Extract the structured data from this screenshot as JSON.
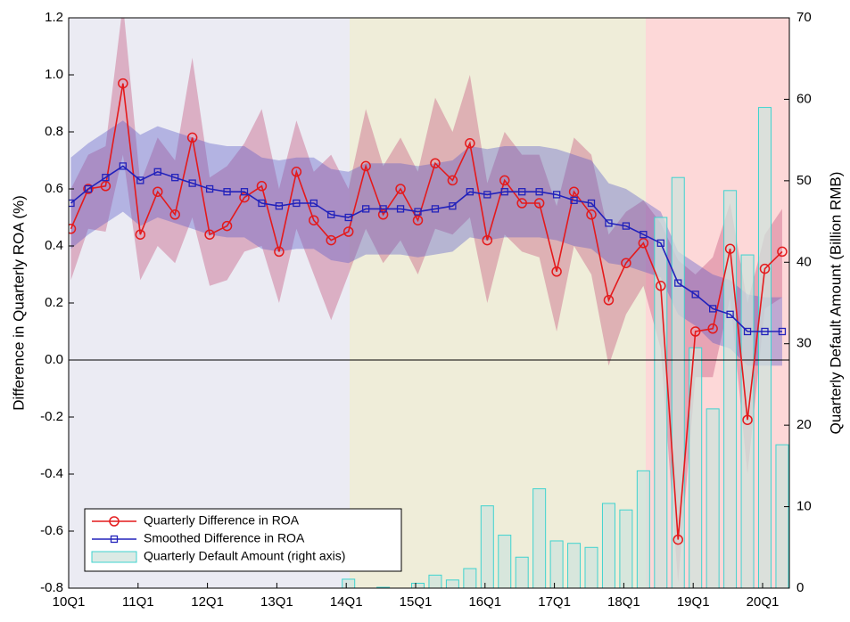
{
  "chart_data": {
    "type": "line",
    "y_label": "Difference in Quarterly ROA (%)",
    "y2_label": "Quarterly Default Amount (Billion RMB)",
    "categories": [
      "10Q1",
      null,
      null,
      null,
      "11Q1",
      null,
      null,
      null,
      "12Q1",
      null,
      null,
      null,
      "13Q1",
      null,
      null,
      null,
      "14Q1",
      null,
      null,
      null,
      "15Q1",
      null,
      null,
      null,
      "16Q1",
      null,
      null,
      null,
      "17Q1",
      null,
      null,
      null,
      "18Q1",
      null,
      null,
      null,
      "19Q1",
      null,
      null,
      null,
      "20Q1",
      null
    ],
    "ylim": [
      -0.8,
      1.2
    ],
    "yticks": [
      -0.8,
      -0.6,
      -0.4,
      -0.2,
      {
        "value": 0,
        "label": "0.0"
      },
      0.2,
      0.4,
      0.6,
      0.8,
      {
        "value": 1,
        "label": "1.0"
      },
      1.2
    ],
    "y2lim": [
      0,
      70
    ],
    "y2ticks": [
      0,
      10,
      20,
      30,
      40,
      50,
      60,
      70
    ],
    "legend": "lower left",
    "series": [
      {
        "name": "Quarterly Default Amount (right axis)",
        "type": "bar",
        "axis": "y2",
        "color": "#cfe3dc",
        "edge_color": "#3fd3cf",
        "values": [
          0,
          0,
          0,
          0,
          0,
          0,
          0,
          0,
          0,
          0,
          0,
          0,
          0,
          0,
          0,
          0,
          1.1,
          0,
          0.1,
          0,
          0.6,
          1.6,
          1.0,
          2.4,
          10.1,
          6.5,
          3.8,
          12.2,
          5.8,
          5.5,
          5.0,
          10.4,
          9.6,
          14.4,
          45.5,
          50.4,
          29.5,
          22.0,
          48.8,
          40.9,
          59.0,
          17.6
        ]
      },
      {
        "name": "Quarterly Difference in ROA",
        "type": "line",
        "marker": "circle",
        "color": "#e41a1c",
        "values": [
          0.46,
          0.6,
          0.61,
          0.97,
          0.44,
          0.59,
          0.51,
          0.78,
          0.44,
          0.47,
          0.57,
          0.61,
          0.38,
          0.66,
          0.49,
          0.42,
          0.45,
          0.68,
          0.51,
          0.6,
          0.49,
          0.69,
          0.63,
          0.76,
          0.42,
          0.63,
          0.55,
          0.55,
          0.31,
          0.59,
          0.51,
          0.21,
          0.34,
          0.41,
          0.26,
          -0.63,
          0.1,
          0.11,
          0.39,
          -0.21,
          0.32,
          0.38
        ]
      },
      {
        "name": "Smoothed Difference in ROA",
        "type": "line",
        "marker": "square",
        "color": "#2222bb",
        "values": [
          0.55,
          0.6,
          0.64,
          0.68,
          0.63,
          0.66,
          0.64,
          0.62,
          0.6,
          0.59,
          0.59,
          0.55,
          0.54,
          0.55,
          0.55,
          0.51,
          0.5,
          0.53,
          0.53,
          0.53,
          0.52,
          0.53,
          0.54,
          0.59,
          0.58,
          0.59,
          0.59,
          0.59,
          0.58,
          0.56,
          0.55,
          0.48,
          0.47,
          0.44,
          0.41,
          0.27,
          0.23,
          0.18,
          0.16,
          0.1,
          0.1,
          0.1
        ]
      }
    ],
    "bands": [
      {
        "color": "#c2507a",
        "upper": [
          0.6,
          0.72,
          0.75,
          1.25,
          0.62,
          0.78,
          0.7,
          1.06,
          0.64,
          0.68,
          0.76,
          0.88,
          0.6,
          0.84,
          0.66,
          0.72,
          0.6,
          0.88,
          0.68,
          0.78,
          0.66,
          0.92,
          0.8,
          1.0,
          0.62,
          0.8,
          0.72,
          0.72,
          0.54,
          0.78,
          0.72,
          0.44,
          0.52,
          0.56,
          0.48,
          0.35,
          0.3,
          0.36,
          0.55,
          0.2,
          0.44,
          0.53
        ],
        "lower": [
          0.28,
          0.46,
          0.45,
          0.72,
          0.28,
          0.4,
          0.34,
          0.5,
          0.26,
          0.28,
          0.38,
          0.4,
          0.2,
          0.46,
          0.3,
          0.14,
          0.3,
          0.46,
          0.34,
          0.42,
          0.3,
          0.46,
          0.44,
          0.5,
          0.2,
          0.44,
          0.38,
          0.36,
          0.1,
          0.4,
          0.3,
          -0.02,
          0.16,
          0.26,
          0.04,
          -0.78,
          -0.06,
          -0.06,
          0.22,
          -0.4,
          0.18,
          0.22
        ]
      },
      {
        "color": "#5a5ac8",
        "upper": [
          0.71,
          0.76,
          0.8,
          0.84,
          0.79,
          0.82,
          0.8,
          0.78,
          0.76,
          0.75,
          0.75,
          0.71,
          0.7,
          0.71,
          0.71,
          0.67,
          0.66,
          0.69,
          0.69,
          0.69,
          0.68,
          0.69,
          0.7,
          0.75,
          0.74,
          0.75,
          0.75,
          0.75,
          0.74,
          0.72,
          0.7,
          0.62,
          0.6,
          0.56,
          0.52,
          0.38,
          0.34,
          0.3,
          0.28,
          0.23,
          0.22,
          0.22
        ],
        "lower": [
          0.39,
          0.44,
          0.48,
          0.52,
          0.47,
          0.5,
          0.48,
          0.46,
          0.44,
          0.43,
          0.43,
          0.39,
          0.38,
          0.39,
          0.39,
          0.35,
          0.34,
          0.37,
          0.37,
          0.37,
          0.36,
          0.37,
          0.38,
          0.43,
          0.42,
          0.43,
          0.43,
          0.43,
          0.42,
          0.4,
          0.39,
          0.34,
          0.33,
          0.31,
          0.29,
          0.16,
          0.12,
          0.06,
          0.04,
          -0.02,
          -0.02,
          -0.02
        ]
      }
    ]
  }
}
